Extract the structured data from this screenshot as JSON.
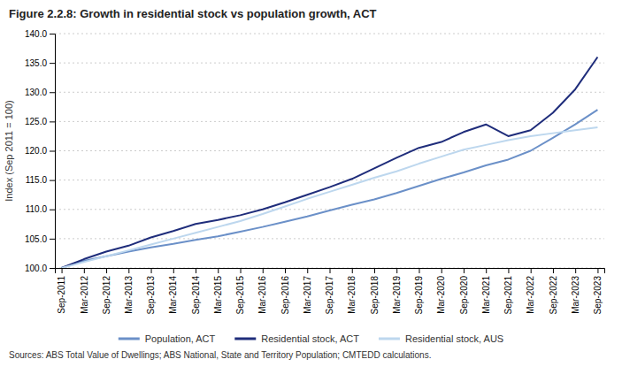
{
  "chart_data": {
    "type": "line",
    "title": "Figure 2.2.8: Growth in residential stock vs population growth, ACT",
    "y_label": "Index (Sep 2011 = 100)",
    "annotations": [
      "Sources: ABS Total Value of Dwellings; ABS National, State and Territory Population; CMTEDD calculations."
    ],
    "categories": [
      "Sep-2011",
      "Mar-2012",
      "Sep-2012",
      "Mar-2013",
      "Sep-2013",
      "Mar-2014",
      "Sep-2014",
      "Mar-2015",
      "Sep-2015",
      "Mar-2016",
      "Sep-2016",
      "Mar-2017",
      "Sep-2017",
      "Mar-2018",
      "Sep-2018",
      "Mar-2019",
      "Sep-2019",
      "Mar-2020",
      "Sep-2020",
      "Mar-2021",
      "Sep-2021",
      "Mar-2022",
      "Sep-2022",
      "Mar-2023",
      "Sep-2023"
    ],
    "series": [
      {
        "name": "Population, ACT",
        "color": "#6B90C8",
        "values": [
          100.0,
          101.2,
          102.0,
          102.8,
          103.5,
          104.1,
          104.8,
          105.4,
          106.2,
          107.0,
          107.9,
          108.8,
          109.8,
          110.8,
          111.7,
          112.8,
          114.0,
          115.2,
          116.3,
          117.5,
          118.5,
          120.0,
          122.2,
          124.5,
          127.0
        ]
      },
      {
        "name": "Residential stock, ACT",
        "color": "#1F2D7B",
        "values": [
          100.0,
          101.5,
          102.8,
          103.8,
          105.2,
          106.3,
          107.5,
          108.2,
          109.0,
          110.0,
          111.2,
          112.5,
          113.8,
          115.2,
          117.0,
          118.8,
          120.5,
          121.5,
          123.2,
          124.5,
          122.5,
          123.5,
          126.5,
          130.5,
          136.0
        ]
      },
      {
        "name": "Residential stock, AUS",
        "color": "#BDD7EE",
        "values": [
          100.0,
          101.0,
          102.0,
          103.0,
          104.0,
          105.0,
          106.0,
          107.0,
          108.0,
          109.2,
          110.5,
          111.8,
          113.0,
          114.2,
          115.4,
          116.5,
          117.8,
          119.0,
          120.2,
          121.0,
          121.8,
          122.5,
          123.0,
          123.5,
          124.0
        ]
      }
    ],
    "ylim": [
      100.0,
      140.0
    ],
    "yticks": [
      {
        "value": 100.0,
        "label": "100.0"
      },
      {
        "value": 105.0,
        "label": "105.0"
      },
      {
        "value": 110.0,
        "label": "110.0"
      },
      {
        "value": 115.0,
        "label": "115.0"
      },
      {
        "value": 120.0,
        "label": "120.0"
      },
      {
        "value": 125.0,
        "label": "125.0"
      },
      {
        "value": 130.0,
        "label": "130.0"
      },
      {
        "value": 135.0,
        "label": "135.0"
      },
      {
        "value": 140.0,
        "label": "140.0"
      }
    ],
    "grid": true,
    "legend": "bottom"
  }
}
